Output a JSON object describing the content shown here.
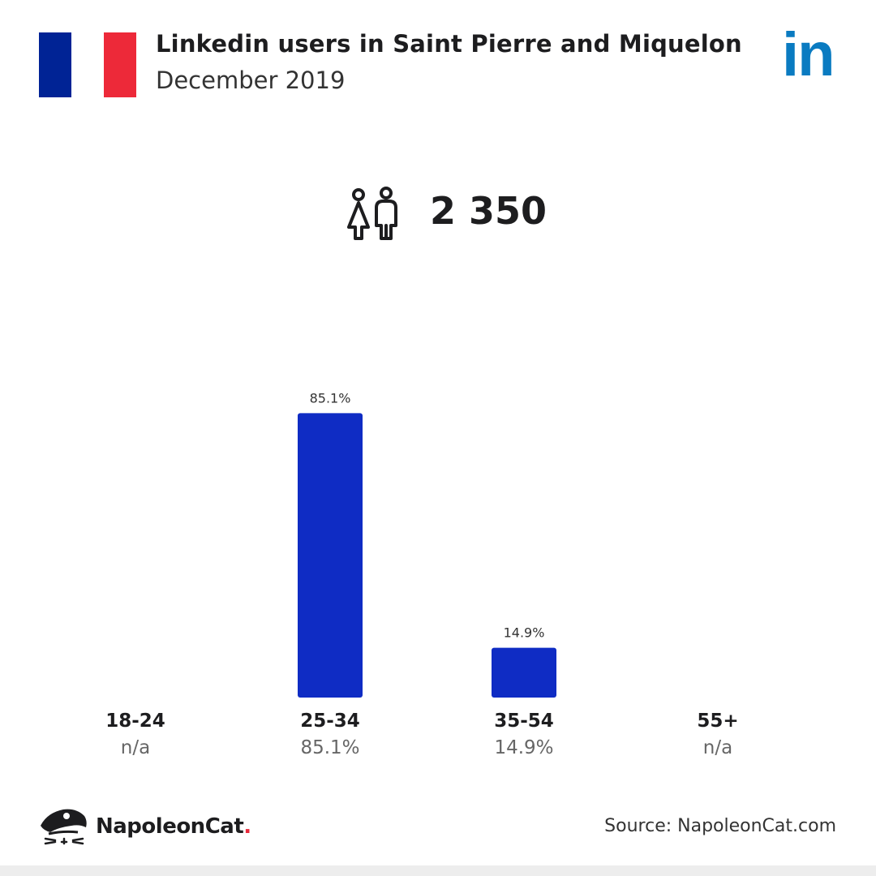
{
  "header": {
    "title": "Linkedin users in Saint Pierre and Miquelon",
    "subtitle": "December 2019",
    "flag_colors": [
      "#002395",
      "#ffffff",
      "#ED2939"
    ],
    "brand_icon": "linkedin-logo-icon",
    "brand_text": "in",
    "brand_color": "#0a7bc1"
  },
  "summary": {
    "icon": "users-icon",
    "total_users": "2 350"
  },
  "chart_data": {
    "type": "bar",
    "title": "Linkedin users in Saint Pierre and Miquelon",
    "categories": [
      "18-24",
      "25-34",
      "35-54",
      "55+"
    ],
    "values": [
      null,
      85.1,
      14.9,
      null
    ],
    "value_labels": [
      "n/a",
      "85.1%",
      "14.9%",
      "n/a"
    ],
    "bar_labels": [
      "",
      "85.1%",
      "14.9%",
      ""
    ],
    "ylim": [
      0,
      100
    ],
    "grid": false,
    "legend": "none",
    "bar_color": "#0f2cc4"
  },
  "footer": {
    "brand_icon": "napoleoncat-logo-icon",
    "brand_name": "NapoleonCat",
    "brand_dot": ".",
    "source": "Source: NapoleonCat.com"
  }
}
